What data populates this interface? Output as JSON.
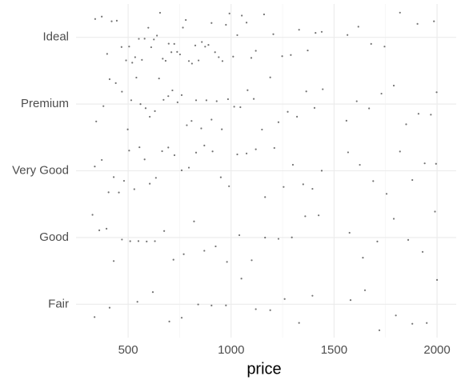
{
  "chart_data": {
    "type": "strip",
    "x_label": "price",
    "xlim": [
      247,
      2093
    ],
    "xticks": [
      500,
      1000,
      1500,
      2000
    ],
    "xminor": [
      750,
      1250,
      1750
    ],
    "grid": true,
    "color": "#000000",
    "series": [
      {
        "name": "Fair",
        "values": [
          337,
          410,
          545,
          620,
          700,
          760,
          840,
          905,
          975,
          1050,
          1120,
          1190,
          1260,
          1330,
          1395,
          1580,
          1650,
          1720,
          1800,
          1880,
          1950,
          2000
        ]
      },
      {
        "name": "Good",
        "values": [
          327,
          360,
          395,
          430,
          470,
          510,
          550,
          590,
          630,
          675,
          720,
          770,
          820,
          870,
          925,
          980,
          1040,
          1100,
          1165,
          1230,
          1295,
          1360,
          1425,
          1575,
          1640,
          1710,
          1790,
          1860,
          1930,
          1990
        ]
      },
      {
        "name": "Very Good",
        "values": [
          338,
          372,
          405,
          430,
          455,
          480,
          505,
          530,
          555,
          580,
          605,
          635,
          665,
          695,
          725,
          760,
          795,
          830,
          870,
          910,
          950,
          990,
          1030,
          1075,
          1120,
          1165,
          1210,
          1255,
          1300,
          1350,
          1395,
          1440,
          1568,
          1625,
          1690,
          1755,
          1820,
          1880,
          1940,
          1995
        ]
      },
      {
        "name": "Premium",
        "values": [
          345,
          380,
          410,
          440,
          470,
          498,
          515,
          540,
          560,
          585,
          605,
          630,
          650,
          672,
          695,
          715,
          740,
          760,
          785,
          808,
          830,
          855,
          880,
          905,
          930,
          955,
          985,
          1015,
          1045,
          1080,
          1110,
          1150,
          1190,
          1230,
          1275,
          1320,
          1365,
          1405,
          1445,
          1560,
          1610,
          1670,
          1730,
          1790,
          1850,
          1910,
          1970,
          1998
        ]
      },
      {
        "name": "Ideal",
        "values": [
          340,
          372,
          398,
          420,
          445,
          468,
          490,
          505,
          520,
          534,
          552,
          567,
          580,
          598,
          612,
          625,
          640,
          655,
          668,
          682,
          697,
          710,
          724,
          738,
          752,
          766,
          780,
          795,
          810,
          826,
          842,
          858,
          874,
          890,
          905,
          922,
          940,
          958,
          975,
          992,
          1010,
          1030,
          1052,
          1075,
          1098,
          1120,
          1160,
          1205,
          1248,
          1290,
          1330,
          1372,
          1410,
          1440,
          1565,
          1618,
          1680,
          1745,
          1820,
          1905,
          1985
        ]
      }
    ]
  }
}
